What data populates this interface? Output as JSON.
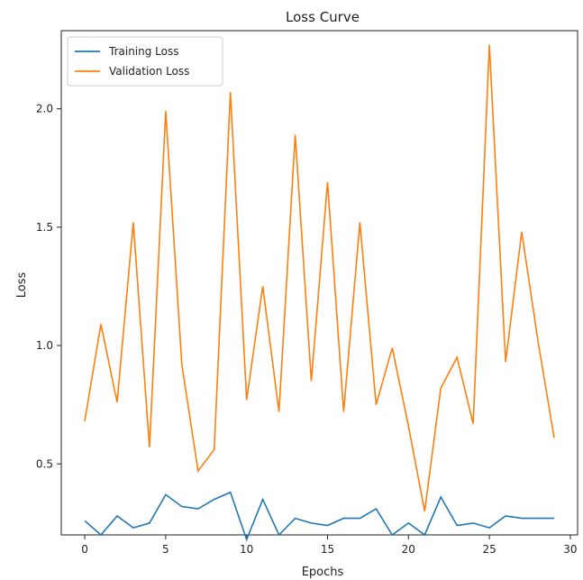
{
  "chart_data": {
    "type": "line",
    "title": "Loss Curve",
    "xlabel": "Epochs",
    "ylabel": "Loss",
    "xlim": [
      -1.45,
      30.45
    ],
    "ylim": [
      0.2,
      2.33
    ],
    "x_ticks": [
      "0",
      "5",
      "10",
      "15",
      "20",
      "25",
      "30"
    ],
    "y_ticks": [
      "0.5",
      "1.0",
      "1.5",
      "2.0"
    ],
    "grid": false,
    "legend_position": "upper-left",
    "x": [
      0,
      1,
      2,
      3,
      4,
      5,
      6,
      7,
      8,
      9,
      10,
      11,
      12,
      13,
      14,
      15,
      16,
      17,
      18,
      19,
      20,
      21,
      22,
      23,
      24,
      25,
      26,
      27,
      28,
      29
    ],
    "series": [
      {
        "name": "Training Loss",
        "color": "#1f77b4",
        "values": [
          0.26,
          0.2,
          0.28,
          0.23,
          0.25,
          0.37,
          0.32,
          0.31,
          0.35,
          0.38,
          0.18,
          0.35,
          0.2,
          0.27,
          0.25,
          0.24,
          0.27,
          0.27,
          0.31,
          0.2,
          0.25,
          0.2,
          0.36,
          0.24,
          0.25,
          0.23,
          0.28,
          0.27,
          0.27,
          0.27
        ]
      },
      {
        "name": "Validation Loss",
        "color": "#ff7f0e",
        "values": [
          0.68,
          1.09,
          0.76,
          1.52,
          0.57,
          1.99,
          0.92,
          0.47,
          0.56,
          2.07,
          0.77,
          1.25,
          0.72,
          1.89,
          0.85,
          1.69,
          0.72,
          1.52,
          0.75,
          0.99,
          0.66,
          0.3,
          0.82,
          0.95,
          0.67,
          2.27,
          0.93,
          1.48,
          1.02,
          0.61
        ]
      }
    ]
  }
}
